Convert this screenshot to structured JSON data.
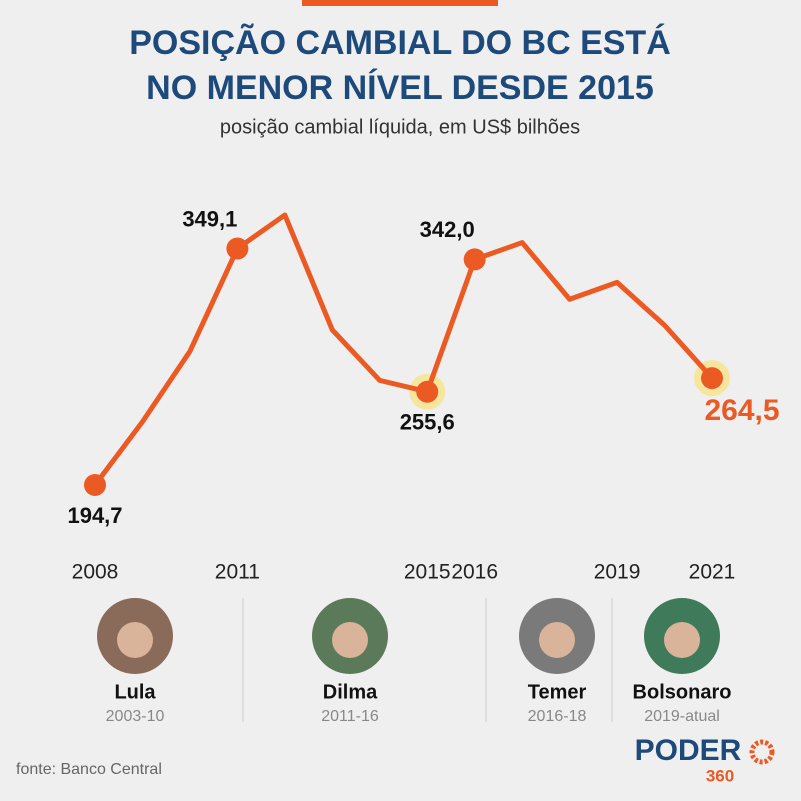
{
  "chart_data": {
    "type": "line",
    "title": [
      "POSIÇÃO CAMBIAL DO BC ESTÁ",
      "NO MENOR NÍVEL DESDE 2015"
    ],
    "subtitle": "posição cambial líquida, em US$ bilhões",
    "x": [
      2008,
      2009,
      2010,
      2011,
      2012,
      2013,
      2014,
      2015,
      2016,
      2017,
      2018,
      2019,
      2020,
      2021
    ],
    "xlim": [
      2008,
      2021
    ],
    "xticks": [
      2008,
      2011,
      2015,
      2016,
      2019,
      2021
    ],
    "series": [
      {
        "color": "#ec5a24",
        "values": [
          194.7,
          236,
          282,
          349.1,
          371,
          296,
          263,
          255.6,
          342.0,
          353,
          316,
          327,
          299,
          264.5
        ],
        "value_labels": [
          "194,7",
          null,
          null,
          "349,1",
          null,
          null,
          null,
          "255,6",
          "342,0",
          null,
          null,
          null,
          null,
          "264,5"
        ]
      }
    ],
    "highlighted": [
      2015,
      2021
    ],
    "presidents": [
      {
        "name": "Lula",
        "term": "2003-10"
      },
      {
        "name": "Dilma",
        "term": "2011-16"
      },
      {
        "name": "Temer",
        "term": "2016-18"
      },
      {
        "name": "Bolsonaro",
        "term": "2019-atual"
      }
    ],
    "source": "fonte: Banco Central",
    "logo": [
      "PODER",
      "360"
    ]
  }
}
